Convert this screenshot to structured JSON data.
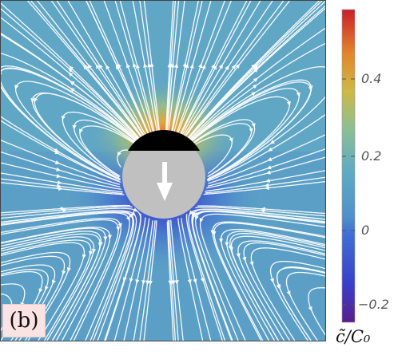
{
  "panel_label": "(b)",
  "chart_data": {
    "type": "heatmap",
    "title": "",
    "colorbar": {
      "title": "c̃/C₀",
      "ticks": [
        "0.4",
        "0.2",
        "0",
        "−0.2"
      ],
      "tick_values": [
        0.4,
        0.2,
        0,
        -0.2
      ],
      "range": [
        -0.28,
        0.58
      ],
      "colors": [
        "#5a1d8f",
        "#3a4fd8",
        "#4f93c8",
        "#63b1c5",
        "#8fc08e",
        "#d6b23d",
        "#e06a28",
        "#c8202a"
      ]
    },
    "background_value": 0.0,
    "streamline_color": "#ffffff",
    "particle": {
      "cap_color": "#000000",
      "body_color": "#c0c0c0",
      "motion": "downward",
      "arrow_icon": "down-arrow-icon"
    }
  }
}
